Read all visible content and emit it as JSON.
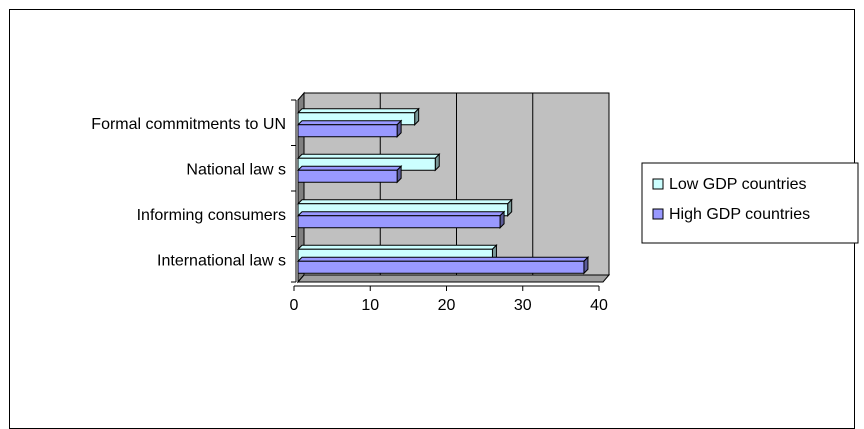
{
  "chart_data": {
    "type": "bar",
    "orientation": "horizontal",
    "categories": [
      "International law s",
      "Informing consumers",
      "National law s",
      "Formal commitments to UN"
    ],
    "series": [
      {
        "name": "Low  GDP countries",
        "values": [
          25.5,
          27.5,
          18,
          15.3
        ],
        "color": "#ccffff"
      },
      {
        "name": "High GDP countries",
        "values": [
          37.5,
          26.5,
          13,
          13
        ],
        "color": "#9999ff"
      }
    ],
    "xlim": [
      0,
      40
    ],
    "x_ticks": [
      "0",
      "10",
      "20",
      "30",
      "40"
    ],
    "title": "",
    "xlabel": "",
    "ylabel": "",
    "grid": true,
    "legend_position": "right",
    "plot_background": "#c0c0c0"
  }
}
